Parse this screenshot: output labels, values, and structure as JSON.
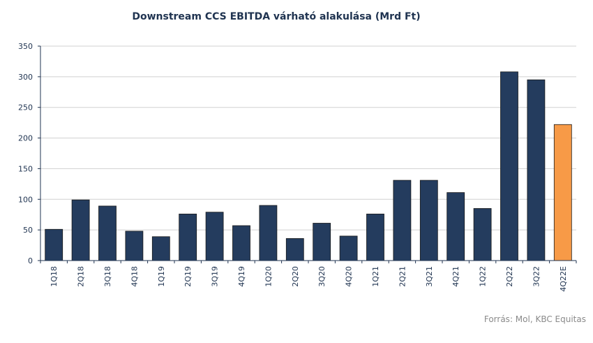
{
  "chart_data": {
    "type": "bar",
    "title": "Downstream CCS EBITDA várható alakulása (Mrd Ft)",
    "categories": [
      "1Q18",
      "2Q18",
      "3Q18",
      "4Q18",
      "1Q19",
      "2Q19",
      "3Q19",
      "4Q19",
      "1Q20",
      "2Q20",
      "3Q20",
      "4Q20",
      "1Q21",
      "2Q21",
      "3Q21",
      "4Q21",
      "1Q22",
      "2Q22",
      "3Q22",
      "4Q22E"
    ],
    "values": [
      51,
      99,
      89,
      48,
      39,
      76,
      79,
      57,
      90,
      36,
      61,
      40,
      76,
      131,
      131,
      111,
      85,
      308,
      295,
      222
    ],
    "ylim": [
      0,
      350
    ],
    "yticks": [
      0,
      50,
      100,
      150,
      200,
      250,
      300,
      350
    ],
    "xlabel": "",
    "ylabel": "",
    "grid": true,
    "legend": "none",
    "colors": {
      "actual": "#243c5e",
      "estimate": "#f79a47",
      "grid": "#d0d0d0",
      "axis": "#1f3350"
    },
    "estimate_categories": [
      "4Q22E"
    ]
  },
  "source": "Forrás: Mol, KBC Equitas"
}
